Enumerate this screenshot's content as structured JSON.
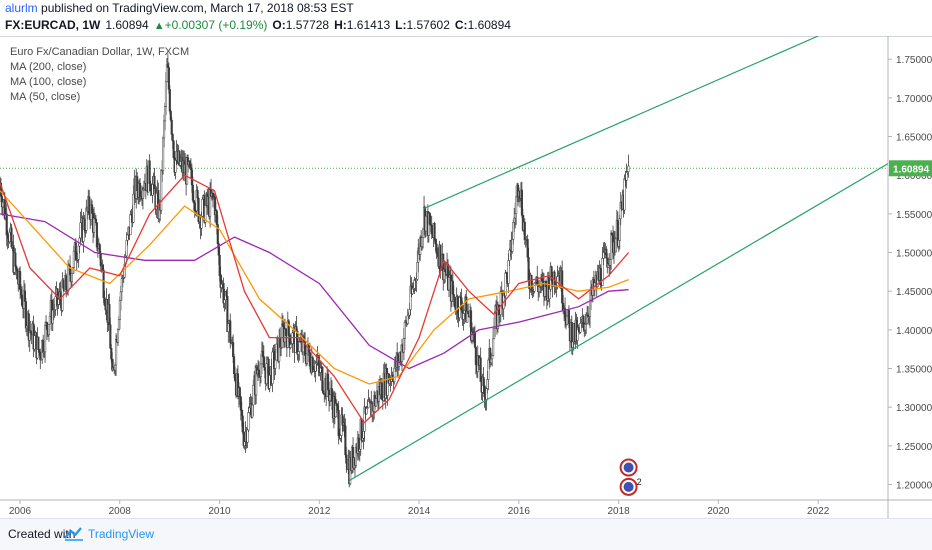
{
  "header": {
    "username": "alurlm",
    "published": "published on TradingView.com, March 17, 2018 08:53 EST",
    "symbol": "FX:EURCAD, 1W",
    "last": "1.60894",
    "change": "+0.00307 (+0.19%)",
    "o_label": "O:",
    "o_val": "1.57728",
    "h_label": "H:",
    "h_val": "1.61413",
    "l_label": "L:",
    "l_val": "1.57602",
    "c_label": "C:",
    "c_val": "1.60894"
  },
  "legend": {
    "title": "Euro Fx/Canadian Dollar, 1W, FXCM",
    "ma200": "MA (200, close)",
    "ma100": "MA (100, close)",
    "ma50": "MA (50, close)"
  },
  "footer": {
    "created": "Created with",
    "brand": "TradingView"
  },
  "colors": {
    "candle": "#3a3a3a",
    "ma200": "#9c27b0",
    "ma100": "#ff9800",
    "ma50": "#e53935",
    "channel": "#26a269",
    "price_label_bg": "#4caf50"
  },
  "chart_data": {
    "type": "candlestick",
    "last_price": 1.60894,
    "last_price_label": "1.60894",
    "ylim": [
      1.18,
      1.78
    ],
    "xlim": [
      2005.6,
      2023.4
    ],
    "yticks": [
      1.2,
      1.25,
      1.3,
      1.35,
      1.4,
      1.45,
      1.5,
      1.55,
      1.6,
      1.65,
      1.7,
      1.75
    ],
    "ytick_labels": [
      "1.20000",
      "1.25000",
      "1.30000",
      "1.35000",
      "1.40000",
      "1.45000",
      "1.50000",
      "1.55000",
      "1.60000",
      "1.65000",
      "1.70000",
      "1.75000"
    ],
    "xticks": [
      2006,
      2008,
      2010,
      2012,
      2014,
      2016,
      2018,
      2020,
      2022
    ],
    "xtick_labels": [
      "2006",
      "2008",
      "2010",
      "2012",
      "2014",
      "2016",
      "2018",
      "2020",
      "2022"
    ],
    "price_path": [
      [
        2005.6,
        1.59
      ],
      [
        2005.9,
        1.48
      ],
      [
        2006.2,
        1.4
      ],
      [
        2006.4,
        1.37
      ],
      [
        2006.6,
        1.42
      ],
      [
        2006.9,
        1.45
      ],
      [
        2007.2,
        1.52
      ],
      [
        2007.4,
        1.56
      ],
      [
        2007.6,
        1.5
      ],
      [
        2007.8,
        1.4
      ],
      [
        2007.85,
        1.33
      ],
      [
        2008.0,
        1.44
      ],
      [
        2008.3,
        1.58
      ],
      [
        2008.6,
        1.6
      ],
      [
        2008.8,
        1.55
      ],
      [
        2008.95,
        1.74
      ],
      [
        2009.1,
        1.62
      ],
      [
        2009.4,
        1.6
      ],
      [
        2009.6,
        1.55
      ],
      [
        2009.9,
        1.57
      ],
      [
        2010.0,
        1.48
      ],
      [
        2010.2,
        1.4
      ],
      [
        2010.4,
        1.3
      ],
      [
        2010.5,
        1.26
      ],
      [
        2010.8,
        1.36
      ],
      [
        2011.0,
        1.34
      ],
      [
        2011.3,
        1.4
      ],
      [
        2011.6,
        1.38
      ],
      [
        2011.9,
        1.36
      ],
      [
        2012.2,
        1.32
      ],
      [
        2012.5,
        1.26
      ],
      [
        2012.6,
        1.22
      ],
      [
        2012.9,
        1.28
      ],
      [
        2013.2,
        1.32
      ],
      [
        2013.6,
        1.36
      ],
      [
        2013.9,
        1.46
      ],
      [
        2014.1,
        1.55
      ],
      [
        2014.4,
        1.5
      ],
      [
        2014.7,
        1.44
      ],
      [
        2015.0,
        1.42
      ],
      [
        2015.2,
        1.35
      ],
      [
        2015.3,
        1.31
      ],
      [
        2015.5,
        1.4
      ],
      [
        2015.8,
        1.48
      ],
      [
        2016.0,
        1.6
      ],
      [
        2016.2,
        1.47
      ],
      [
        2016.5,
        1.45
      ],
      [
        2016.8,
        1.48
      ],
      [
        2017.0,
        1.4
      ],
      [
        2017.2,
        1.39
      ],
      [
        2017.5,
        1.45
      ],
      [
        2017.8,
        1.5
      ],
      [
        2018.0,
        1.53
      ],
      [
        2018.2,
        1.609
      ]
    ],
    "series": [
      {
        "name": "MA (200, close)",
        "points": [
          [
            2005.6,
            1.55
          ],
          [
            2006.5,
            1.54
          ],
          [
            2007.5,
            1.5
          ],
          [
            2008.5,
            1.49
          ],
          [
            2009.5,
            1.49
          ],
          [
            2010.3,
            1.52
          ],
          [
            2011.0,
            1.5
          ],
          [
            2012.0,
            1.46
          ],
          [
            2013.0,
            1.38
          ],
          [
            2013.8,
            1.35
          ],
          [
            2014.5,
            1.37
          ],
          [
            2015.2,
            1.4
          ],
          [
            2016.0,
            1.41
          ],
          [
            2016.6,
            1.42
          ],
          [
            2017.2,
            1.43
          ],
          [
            2017.8,
            1.45
          ],
          [
            2018.2,
            1.452
          ]
        ]
      },
      {
        "name": "MA (100, close)",
        "points": [
          [
            2005.6,
            1.58
          ],
          [
            2006.3,
            1.53
          ],
          [
            2007.0,
            1.48
          ],
          [
            2007.8,
            1.46
          ],
          [
            2008.6,
            1.51
          ],
          [
            2009.3,
            1.56
          ],
          [
            2010.0,
            1.53
          ],
          [
            2010.8,
            1.44
          ],
          [
            2011.5,
            1.4
          ],
          [
            2012.3,
            1.35
          ],
          [
            2013.0,
            1.33
          ],
          [
            2013.6,
            1.34
          ],
          [
            2014.3,
            1.4
          ],
          [
            2015.0,
            1.44
          ],
          [
            2015.8,
            1.45
          ],
          [
            2016.5,
            1.46
          ],
          [
            2017.2,
            1.45
          ],
          [
            2017.8,
            1.455
          ],
          [
            2018.2,
            1.465
          ]
        ]
      },
      {
        "name": "MA (50, close)",
        "points": [
          [
            2005.6,
            1.59
          ],
          [
            2006.2,
            1.48
          ],
          [
            2006.8,
            1.44
          ],
          [
            2007.4,
            1.48
          ],
          [
            2008.0,
            1.47
          ],
          [
            2008.6,
            1.55
          ],
          [
            2009.3,
            1.6
          ],
          [
            2009.9,
            1.58
          ],
          [
            2010.5,
            1.45
          ],
          [
            2011.0,
            1.39
          ],
          [
            2011.6,
            1.39
          ],
          [
            2012.3,
            1.34
          ],
          [
            2012.9,
            1.28
          ],
          [
            2013.4,
            1.31
          ],
          [
            2014.0,
            1.39
          ],
          [
            2014.5,
            1.49
          ],
          [
            2015.0,
            1.45
          ],
          [
            2015.5,
            1.42
          ],
          [
            2016.0,
            1.46
          ],
          [
            2016.6,
            1.47
          ],
          [
            2017.2,
            1.44
          ],
          [
            2017.8,
            1.47
          ],
          [
            2018.2,
            1.5
          ]
        ]
      }
    ],
    "channel": [
      {
        "name": "upper",
        "from": [
          2014.1,
          1.557
        ],
        "to": [
          2022.0,
          1.78
        ]
      },
      {
        "name": "lower",
        "from": [
          2012.6,
          1.205
        ],
        "to": [
          2023.4,
          1.615
        ]
      }
    ],
    "event_markers": [
      {
        "x": 2018.2,
        "y": 1.222,
        "label": ""
      },
      {
        "x": 2018.2,
        "y": 1.197,
        "label": "2"
      }
    ]
  }
}
